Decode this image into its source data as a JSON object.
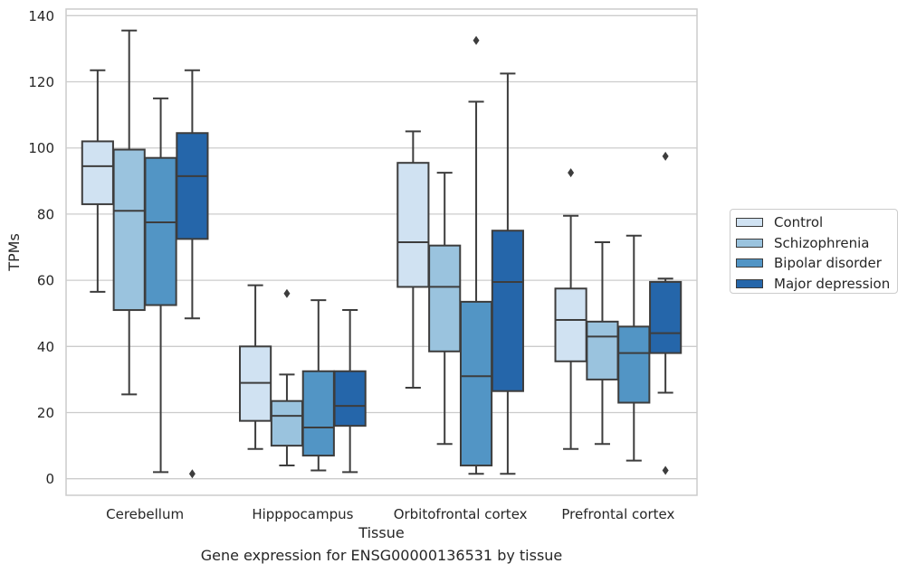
{
  "chart_data": {
    "type": "box",
    "title": "Gene expression for ENSG00000136531 by tissue",
    "xlabel": "Tissue",
    "ylabel": "TPMs",
    "ylim": [
      -5,
      142
    ],
    "yticks": [
      0,
      20,
      40,
      60,
      80,
      100,
      120,
      140
    ],
    "grid": "horizontal",
    "legend_position": "right",
    "categories": [
      "Cerebellum",
      "Hipppocampus",
      "Orbitofrontal cortex",
      "Prefrontal cortex"
    ],
    "series": [
      {
        "name": "Control",
        "color": "#d0e2f2",
        "boxes": [
          {
            "whislo": 56.5,
            "q1": 83,
            "median": 94.5,
            "q3": 102,
            "whishi": 123.5,
            "fliers": []
          },
          {
            "whislo": 9,
            "q1": 17.5,
            "median": 29,
            "q3": 40,
            "whishi": 58.5,
            "fliers": []
          },
          {
            "whislo": 27.5,
            "q1": 58,
            "median": 71.5,
            "q3": 95.5,
            "whishi": 105,
            "fliers": []
          },
          {
            "whislo": 9,
            "q1": 35.5,
            "median": 48,
            "q3": 57.5,
            "whishi": 79.5,
            "fliers": [
              92.5
            ]
          }
        ]
      },
      {
        "name": "Schizophrenia",
        "color": "#9ac3de",
        "boxes": [
          {
            "whislo": 25.5,
            "q1": 51,
            "median": 81,
            "q3": 99.5,
            "whishi": 135.5,
            "fliers": []
          },
          {
            "whislo": 4,
            "q1": 10,
            "median": 19,
            "q3": 23.5,
            "whishi": 31.5,
            "fliers": [
              56
            ]
          },
          {
            "whislo": 10.5,
            "q1": 38.5,
            "median": 58,
            "q3": 70.5,
            "whishi": 92.5,
            "fliers": []
          },
          {
            "whislo": 10.5,
            "q1": 30,
            "median": 43,
            "q3": 47.5,
            "whishi": 71.5,
            "fliers": []
          }
        ]
      },
      {
        "name": "Bipolar disorder",
        "color": "#5295c5",
        "boxes": [
          {
            "whislo": 2,
            "q1": 52.5,
            "median": 77.5,
            "q3": 97,
            "whishi": 115,
            "fliers": []
          },
          {
            "whislo": 2.5,
            "q1": 7,
            "median": 15.5,
            "q3": 32.5,
            "whishi": 54,
            "fliers": []
          },
          {
            "whislo": 1.5,
            "q1": 4,
            "median": 31,
            "q3": 53.5,
            "whishi": 114,
            "fliers": [
              132.5
            ]
          },
          {
            "whislo": 5.5,
            "q1": 23,
            "median": 38,
            "q3": 46,
            "whishi": 73.5,
            "fliers": []
          }
        ]
      },
      {
        "name": "Major depression",
        "color": "#2566aa",
        "boxes": [
          {
            "whislo": 48.5,
            "q1": 72.5,
            "median": 91.5,
            "q3": 104.5,
            "whishi": 123.5,
            "fliers": [
              1.5
            ]
          },
          {
            "whislo": 2,
            "q1": 16,
            "median": 22,
            "q3": 32.5,
            "whishi": 51,
            "fliers": []
          },
          {
            "whislo": 1.5,
            "q1": 26.5,
            "median": 59.5,
            "q3": 75,
            "whishi": 122.5,
            "fliers": []
          },
          {
            "whislo": 26,
            "q1": 38,
            "median": 44,
            "q3": 59.5,
            "whishi": 60.5,
            "fliers": [
              2.5,
              97.5
            ]
          }
        ]
      }
    ]
  }
}
